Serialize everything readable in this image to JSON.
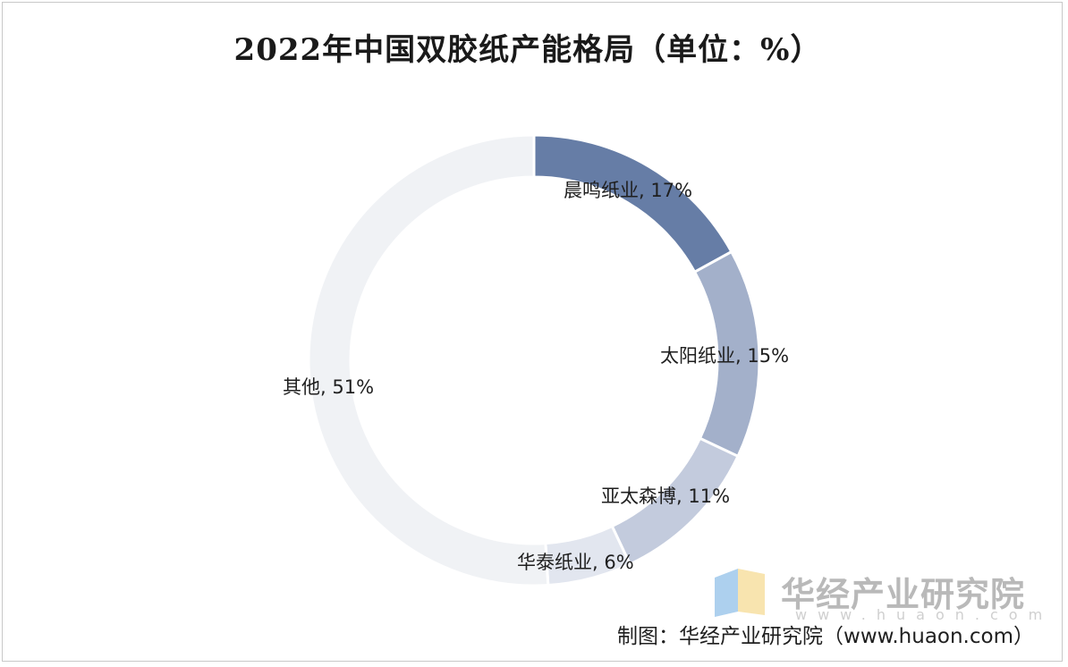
{
  "title": "2022年中国双胶纸产能格局（单位：%）",
  "chart_data": {
    "type": "pie",
    "variant": "donut",
    "title": "2022年中国双胶纸产能格局（单位：%）",
    "unit": "%",
    "categories": [
      "晨鸣纸业",
      "太阳纸业",
      "亚太森博",
      "华泰纸业",
      "其他"
    ],
    "values": [
      17,
      15,
      11,
      6,
      51
    ],
    "labels": [
      "晨鸣纸业, 17%",
      "太阳纸业, 15%",
      "亚太森博, 11%",
      "华泰纸业, 6%",
      "其他, 51%"
    ],
    "colors": [
      "#667da6",
      "#a3b0ca",
      "#c3cbdd",
      "#e2e6ef",
      "#f0f2f5"
    ],
    "start_angle_deg": 0,
    "direction": "clockwise"
  },
  "watermark": {
    "text": "华经产业研究院",
    "url": "www.huaon.com",
    "logo_colors": [
      "#6aa9e0",
      "#f3d27a"
    ]
  },
  "source": {
    "text": "制图：华经产业研究院（www.huaon.com）"
  }
}
